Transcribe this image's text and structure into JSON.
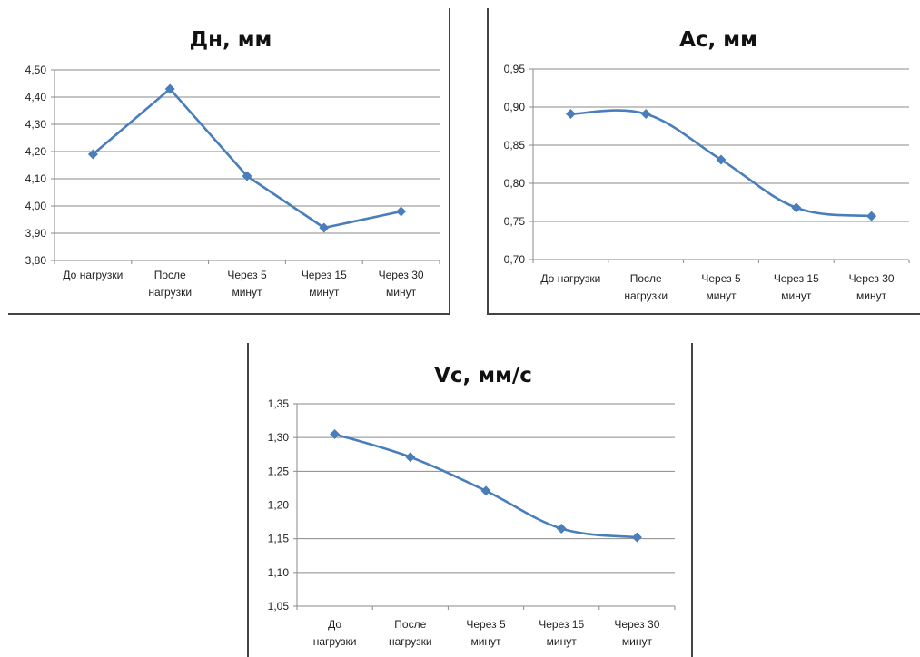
{
  "chart_data": [
    {
      "type": "line",
      "title": "Дн, мм",
      "categories": [
        [
          "До нагрузки"
        ],
        [
          "После",
          "нагрузки"
        ],
        [
          "Через 5",
          "минут"
        ],
        [
          "Через 15",
          "минут"
        ],
        [
          "Через 30",
          "минут"
        ]
      ],
      "y_ticks": [
        "3,80",
        "3,90",
        "4,00",
        "4,10",
        "4,20",
        "4,30",
        "4,40",
        "4,50"
      ],
      "ylim": [
        3.8,
        4.5
      ],
      "values": [
        4.19,
        4.43,
        4.11,
        3.92,
        3.98
      ],
      "smooth": false,
      "grid": true,
      "color": "#4a7ebb"
    },
    {
      "type": "line",
      "title": "Ас, мм",
      "categories": [
        [
          "До нагрузки"
        ],
        [
          "После",
          "нагрузки"
        ],
        [
          "Через 5",
          "минут"
        ],
        [
          "Через 15",
          "минут"
        ],
        [
          "Через 30",
          "минут"
        ]
      ],
      "y_ticks": [
        "0,70",
        "0,75",
        "0,80",
        "0,85",
        "0,90",
        "0,95"
      ],
      "ylim": [
        0.7,
        0.95
      ],
      "values": [
        0.891,
        0.891,
        0.831,
        0.768,
        0.757
      ],
      "smooth": true,
      "grid": true,
      "color": "#4a7ebb"
    },
    {
      "type": "line",
      "title": "Vc, мм/с",
      "categories": [
        [
          "До",
          "нагрузки"
        ],
        [
          "После",
          "нагрузки"
        ],
        [
          "Через 5",
          "минут"
        ],
        [
          "Через 15",
          "минут"
        ],
        [
          "Через 30",
          "минут"
        ]
      ],
      "y_ticks": [
        "1,05",
        "1,10",
        "1,15",
        "1,20",
        "1,25",
        "1,30",
        "1,35"
      ],
      "ylim": [
        1.05,
        1.35
      ],
      "values": [
        1.305,
        1.271,
        1.221,
        1.165,
        1.152
      ],
      "smooth": true,
      "grid": true,
      "color": "#4a7ebb"
    }
  ]
}
